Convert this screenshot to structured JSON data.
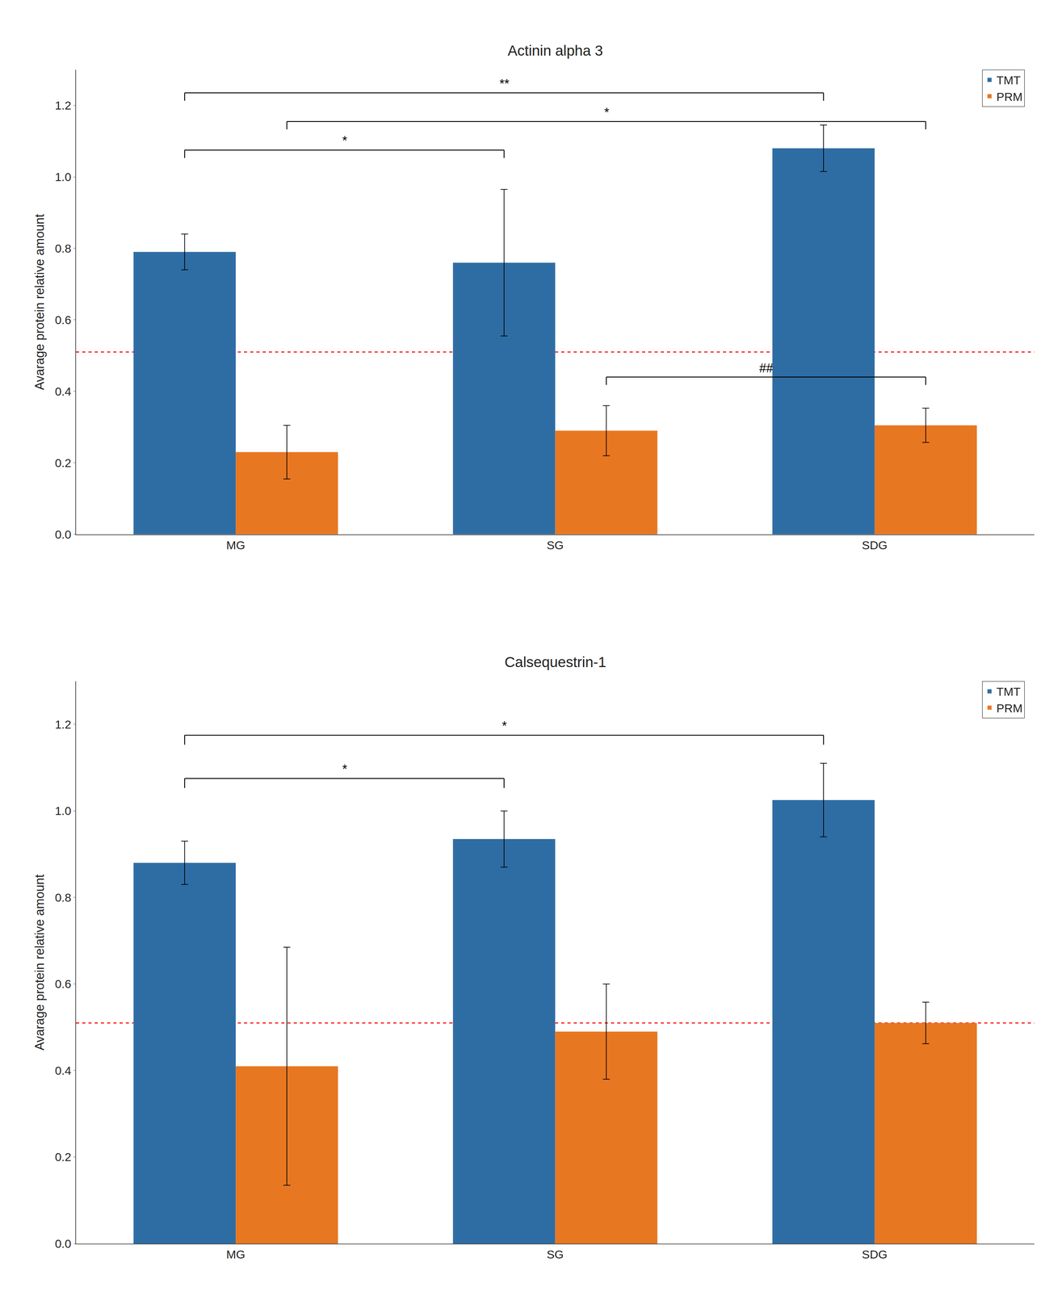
{
  "chart_data": [
    {
      "type": "bar",
      "title": "Actinin alpha 3",
      "categories": [
        "MG",
        "SG",
        "SDG"
      ],
      "series": [
        {
          "name": "TMT",
          "color": "#2E6DA4",
          "values": [
            0.79,
            0.76,
            1.08
          ],
          "errors": [
            0.05,
            0.205,
            0.065
          ]
        },
        {
          "name": "PRM",
          "color": "#E87722",
          "values": [
            0.23,
            0.29,
            0.305
          ],
          "errors": [
            0.075,
            0.07,
            0.048
          ]
        }
      ],
      "ylabel": "Avarage protein relative amount",
      "ylim": [
        0,
        1.3
      ],
      "yticks": [
        {
          "value": 0,
          "label": "0.0"
        },
        0.2,
        0.4,
        0.6,
        0.8,
        {
          "value": 1.0,
          "label": "1.0"
        },
        1.2
      ],
      "grid": false,
      "legend": "upper right",
      "reference_line": {
        "y": 0.51,
        "color": "#FF0000"
      },
      "brackets": [
        {
          "from": {
            "category": "MG",
            "series": "TMT"
          },
          "to": {
            "category": "SDG",
            "series": "TMT"
          },
          "label": "**",
          "y": 1.235
        },
        {
          "from": {
            "category": "MG",
            "series": "PRM"
          },
          "to": {
            "category": "SDG",
            "series": "PRM"
          },
          "label": "*",
          "y": 1.155
        },
        {
          "from": {
            "category": "MG",
            "series": "TMT"
          },
          "to": {
            "category": "SG",
            "series": "TMT"
          },
          "label": "*",
          "y": 1.075
        },
        {
          "from": {
            "category": "SG",
            "series": "PRM"
          },
          "to": {
            "category": "SDG",
            "series": "PRM"
          },
          "label": "##",
          "y": 0.44
        }
      ]
    },
    {
      "type": "bar",
      "title": "Calsequestrin-1",
      "categories": [
        "MG",
        "SG",
        "SDG"
      ],
      "series": [
        {
          "name": "TMT",
          "color": "#2E6DA4",
          "values": [
            0.88,
            0.935,
            1.025
          ],
          "errors": [
            0.05,
            0.065,
            0.085
          ]
        },
        {
          "name": "PRM",
          "color": "#E87722",
          "values": [
            0.41,
            0.49,
            0.51
          ],
          "errors": [
            0.275,
            0.11,
            0.048
          ]
        }
      ],
      "ylabel": "Avarage protein relative amount",
      "ylim": [
        0,
        1.3
      ],
      "yticks": [
        {
          "value": 0,
          "label": "0.0"
        },
        0.2,
        0.4,
        0.6,
        0.8,
        {
          "value": 1.0,
          "label": "1.0"
        },
        1.2
      ],
      "grid": false,
      "legend": "upper right",
      "reference_line": {
        "y": 0.51,
        "color": "#FF0000"
      },
      "brackets": [
        {
          "from": {
            "category": "MG",
            "series": "TMT"
          },
          "to": {
            "category": "SG",
            "series": "TMT"
          },
          "label": "*",
          "y": 1.075
        },
        {
          "from": {
            "category": "MG",
            "series": "TMT"
          },
          "to": {
            "category": "SDG",
            "series": "TMT"
          },
          "label": "*",
          "y": 1.175
        }
      ]
    }
  ]
}
